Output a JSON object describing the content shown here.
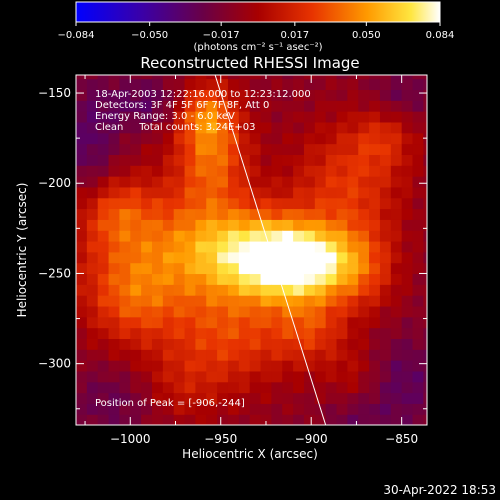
{
  "chart_data": {
    "type": "heatmap",
    "title": "Reconstructed RHESSI Image",
    "xlabel": "Heliocentric X (arcsec)",
    "ylabel": "Heliocentric Y (arcsec)",
    "xlim": [
      -1030,
      -836
    ],
    "ylim": [
      -334,
      -140
    ],
    "x_ticks": [
      -1000,
      -950,
      -900,
      -850
    ],
    "x_tick_labels": [
      "−1000",
      "−950",
      "−900",
      "−850"
    ],
    "y_ticks": [
      -150,
      -200,
      -250,
      -300
    ],
    "y_tick_labels": [
      "−150",
      "−200",
      "−250",
      "−300"
    ],
    "colorbar": {
      "range": [
        -0.084,
        0.084
      ],
      "tick_values": [
        -0.084,
        -0.05,
        -0.017,
        0.017,
        0.05,
        0.084
      ],
      "tick_labels": [
        "−0.084",
        "−0.050",
        "−0.017",
        "0.017",
        "0.050",
        "0.084"
      ],
      "unit_label": "(photons cm⁻² s⁻¹ asec⁻²)"
    },
    "info_lines": [
      "18-Apr-2003 12:22:16.000 to 12:23:12.000",
      "Detectors: 3F 4F 5F 6F 7F 8F, Att 0",
      "Energy Range: 3.0 - 6.0 keV",
      "Clean     Total counts: 3.24E+03"
    ],
    "peak_label": "Position of Peak = [-906,-244]",
    "peak": [
      -906,
      -244
    ],
    "limb_line": [
      [
        -955,
        -134
      ],
      [
        -892,
        -334
      ]
    ],
    "emission_model": {
      "background": -0.012,
      "blobs": [
        {
          "x": -906,
          "y": -244,
          "sx": 20,
          "sy": 14,
          "amp": 0.085
        },
        {
          "x": -935,
          "y": -238,
          "sx": 26,
          "sy": 18,
          "amp": 0.062
        },
        {
          "x": -955,
          "y": -180,
          "sx": 14,
          "sy": 22,
          "amp": 0.05
        },
        {
          "x": -985,
          "y": -235,
          "sx": 32,
          "sy": 26,
          "amp": 0.038
        },
        {
          "x": -880,
          "y": -200,
          "sx": 22,
          "sy": 24,
          "amp": 0.034
        },
        {
          "x": -945,
          "y": -285,
          "sx": 26,
          "sy": 20,
          "amp": 0.036
        },
        {
          "x": -1000,
          "y": -265,
          "sx": 18,
          "sy": 18,
          "amp": 0.03
        },
        {
          "x": -900,
          "y": -280,
          "sx": 14,
          "sy": 14,
          "amp": 0.03
        },
        {
          "x": -872,
          "y": -248,
          "sx": 14,
          "sy": 18,
          "amp": 0.03
        },
        {
          "x": -960,
          "y": -160,
          "sx": 10,
          "sy": 10,
          "amp": 0.03
        },
        {
          "x": -1010,
          "y": -215,
          "sx": 14,
          "sy": 14,
          "amp": 0.028
        },
        {
          "x": -860,
          "y": -175,
          "sx": 12,
          "sy": 12,
          "amp": 0.022
        },
        {
          "x": -975,
          "y": -315,
          "sx": 18,
          "sy": 14,
          "amp": 0.02
        },
        {
          "x": -875,
          "y": -305,
          "sx": 12,
          "sy": 12,
          "amp": 0.016
        },
        {
          "x": -990,
          "y": -155,
          "sx": 16,
          "sy": 10,
          "amp": -0.02
        },
        {
          "x": -1022,
          "y": -180,
          "sx": 12,
          "sy": 26,
          "amp": -0.022
        },
        {
          "x": -850,
          "y": -310,
          "sx": 16,
          "sy": 18,
          "amp": -0.02
        },
        {
          "x": -1005,
          "y": -320,
          "sx": 20,
          "sy": 14,
          "amp": -0.018
        },
        {
          "x": -850,
          "y": -150,
          "sx": 12,
          "sy": 10,
          "amp": -0.015
        },
        {
          "x": -875,
          "y": -330,
          "sx": 12,
          "sy": 8,
          "amp": -0.012
        }
      ]
    }
  },
  "footer": {
    "timestamp": "30-Apr-2022 18:53"
  }
}
